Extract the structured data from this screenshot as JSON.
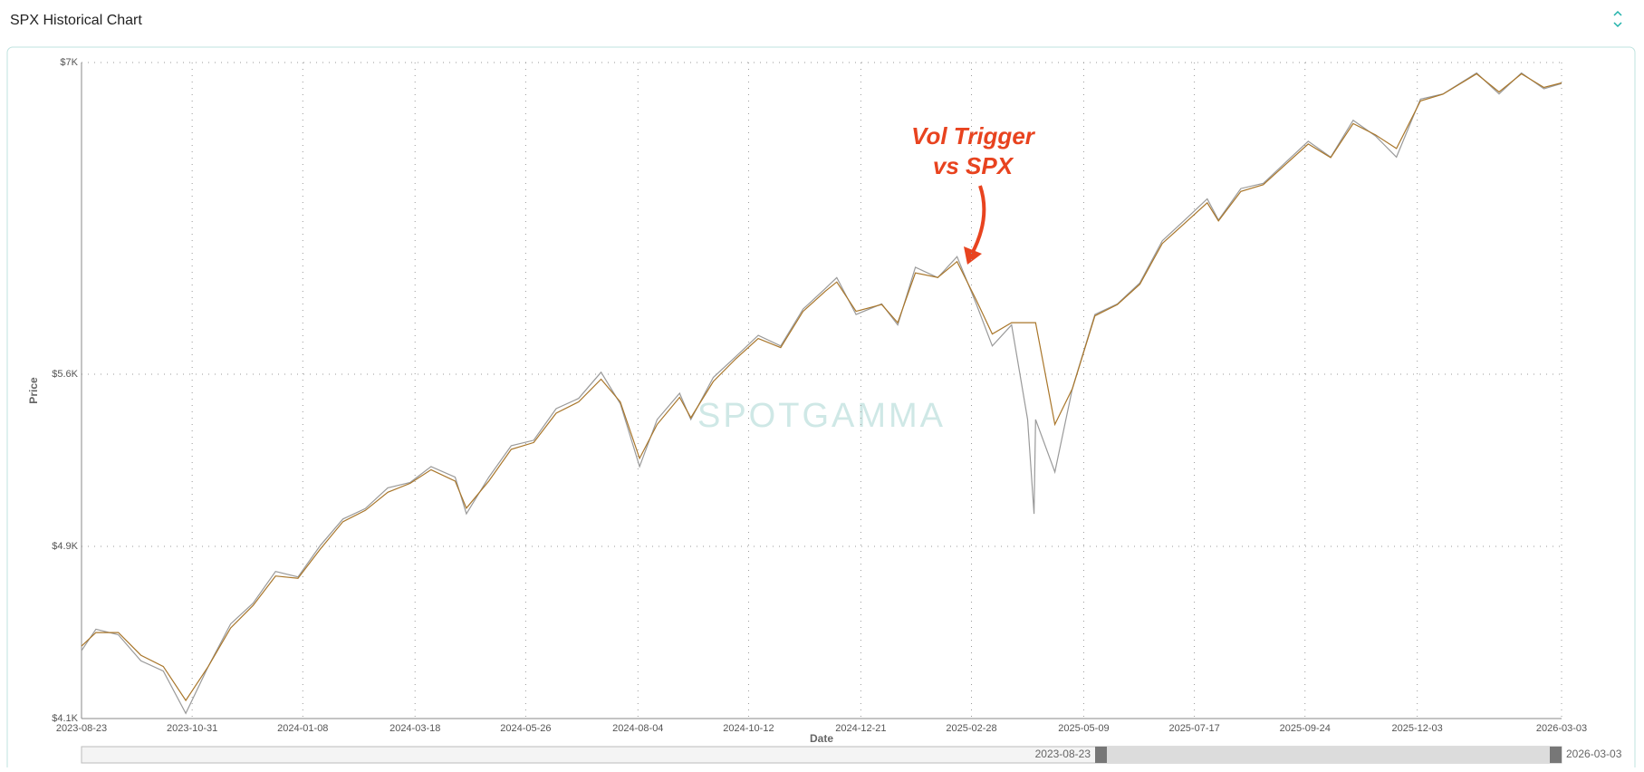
{
  "header": {
    "title": "SPX Historical Chart"
  },
  "chart_data": {
    "type": "line",
    "ylabel": "Price",
    "xlabel": "Date",
    "annotation": [
      "Vol Trigger",
      "vs SPX"
    ],
    "watermark": "SPOTGAMMA",
    "x": [
      "2023-08-23",
      "2023-09-01",
      "2023-09-15",
      "2023-09-29",
      "2023-10-13",
      "2023-10-27",
      "2023-11-10",
      "2023-11-24",
      "2023-12-08",
      "2023-12-22",
      "2024-01-05",
      "2024-01-19",
      "2024-02-02",
      "2024-02-16",
      "2024-03-01",
      "2024-03-15",
      "2024-03-28",
      "2024-04-12",
      "2024-04-19",
      "2024-05-03",
      "2024-05-17",
      "2024-05-31",
      "2024-06-14",
      "2024-06-28",
      "2024-07-12",
      "2024-07-24",
      "2024-08-05",
      "2024-08-16",
      "2024-08-30",
      "2024-09-06",
      "2024-09-20",
      "2024-10-04",
      "2024-10-18",
      "2024-11-01",
      "2024-11-15",
      "2024-11-29",
      "2024-12-06",
      "2024-12-18",
      "2025-01-03",
      "2025-01-13",
      "2025-01-24",
      "2025-02-07",
      "2025-02-19",
      "2025-03-03",
      "2025-03-13",
      "2025-03-25",
      "2025-04-04",
      "2025-04-08",
      "2025-04-09",
      "2025-04-21",
      "2025-05-02",
      "2025-05-16",
      "2025-05-30",
      "2025-06-13",
      "2025-06-27",
      "2025-07-11",
      "2025-07-25",
      "2025-08-01",
      "2025-08-15",
      "2025-08-29",
      "2025-09-12",
      "2025-09-26",
      "2025-10-10",
      "2025-10-24",
      "2025-11-07",
      "2025-11-20",
      "2025-12-05",
      "2025-12-19",
      "2026-01-09",
      "2026-01-23",
      "2026-02-06",
      "2026-02-20",
      "2026-03-03"
    ],
    "series": [
      {
        "color": "#9a9a9a",
        "values": [
          4400,
          4495,
          4470,
          4355,
          4310,
          4123,
          4330,
          4518,
          4610,
          4750,
          4726,
          4866,
          4982,
          5028,
          5120,
          5144,
          5214,
          5167,
          5005,
          5167,
          5306,
          5330,
          5470,
          5515,
          5631,
          5492,
          5214,
          5422,
          5538,
          5422,
          5608,
          5700,
          5794,
          5747,
          5910,
          6002,
          6049,
          5886,
          5933,
          5840,
          6095,
          6049,
          6142,
          5933,
          5747,
          5840,
          5422,
          5005,
          5422,
          5190,
          5562,
          5886,
          5933,
          6026,
          6212,
          6304,
          6397,
          6304,
          6443,
          6466,
          6559,
          6652,
          6582,
          6745,
          6675,
          6582,
          6838,
          6861,
          6954,
          6861,
          6954,
          6884,
          6907
        ]
      },
      {
        "color": "#a9762a",
        "values": [
          4420,
          4480,
          4480,
          4380,
          4330,
          4180,
          4330,
          4500,
          4600,
          4730,
          4720,
          4850,
          4970,
          5020,
          5100,
          5140,
          5200,
          5150,
          5030,
          5150,
          5290,
          5320,
          5450,
          5500,
          5600,
          5500,
          5250,
          5400,
          5520,
          5430,
          5590,
          5690,
          5780,
          5740,
          5900,
          5990,
          6030,
          5900,
          5930,
          5850,
          6070,
          6050,
          6120,
          5950,
          5800,
          5850,
          5850,
          5850,
          5850,
          5400,
          5560,
          5880,
          5930,
          6020,
          6200,
          6290,
          6380,
          6300,
          6430,
          6460,
          6550,
          6640,
          6580,
          6730,
          6680,
          6620,
          6830,
          6860,
          6950,
          6870,
          6950,
          6890,
          6910
        ]
      }
    ],
    "xlim": [
      "2023-08-23",
      "2026-03-03"
    ],
    "xticks": [
      "2023-08-23",
      "2023-10-31",
      "2024-01-08",
      "2024-03-18",
      "2024-05-26",
      "2024-08-04",
      "2024-10-12",
      "2024-12-21",
      "2025-02-28",
      "2025-05-09",
      "2025-07-17",
      "2025-09-24",
      "2025-12-03",
      "2026-03-03"
    ],
    "ylim": [
      4100,
      7000
    ],
    "yticks": [
      {
        "value": 4100,
        "label": "$4.1K"
      },
      {
        "value": 4861,
        "label": "$4.9K"
      },
      {
        "value": 5622,
        "label": "$5.6K"
      },
      {
        "value": 7000,
        "label": "$7K"
      }
    ],
    "grid": true
  }
}
